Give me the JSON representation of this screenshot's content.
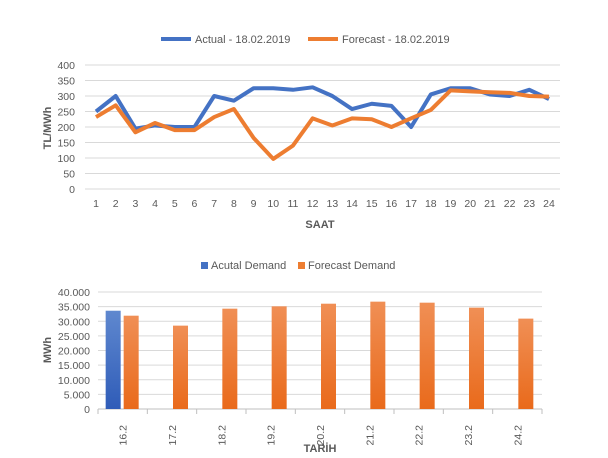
{
  "chart_data": [
    {
      "type": "line",
      "title": "",
      "xlabel": "SAAT",
      "ylabel": "TL/MWh",
      "ylim": [
        0,
        400
      ],
      "yticks": [
        "0",
        "50",
        "100",
        "150",
        "200",
        "250",
        "300",
        "350",
        "400"
      ],
      "grid": true,
      "legend_position": "top",
      "categories": [
        "1",
        "2",
        "3",
        "4",
        "5",
        "6",
        "7",
        "8",
        "9",
        "10",
        "11",
        "12",
        "13",
        "14",
        "15",
        "16",
        "17",
        "18",
        "19",
        "20",
        "21",
        "22",
        "23",
        "24"
      ],
      "series": [
        {
          "name": "Actual - 18.02.2019",
          "color": "#4472C4",
          "values": [
            250,
            300,
            195,
            205,
            200,
            200,
            300,
            285,
            325,
            325,
            320,
            328,
            300,
            258,
            275,
            268,
            200,
            305,
            325,
            325,
            305,
            300,
            320,
            290
          ]
        },
        {
          "name": "Forecast - 18.02.2019",
          "color": "#ED7D31",
          "values": [
            232,
            270,
            183,
            213,
            190,
            190,
            232,
            258,
            165,
            97,
            140,
            228,
            205,
            228,
            225,
            200,
            228,
            255,
            318,
            315,
            312,
            310,
            300,
            298
          ]
        }
      ]
    },
    {
      "type": "bar",
      "title": "",
      "xlabel": "TARİH",
      "ylabel": "MWh",
      "ylim": [
        0,
        40000
      ],
      "yticks": [
        "0",
        "5.000",
        "10.000",
        "15.000",
        "20.000",
        "25.000",
        "30.000",
        "35.000",
        "40.000"
      ],
      "grid": true,
      "legend_position": "top",
      "categories": [
        "16.2",
        "17.2",
        "18.2",
        "19.2",
        "20.2",
        "21.2",
        "22.2",
        "23.2",
        "24.2"
      ],
      "series": [
        {
          "name": "Acutal Demand",
          "color": "#4472C4",
          "values": [
            33600,
            null,
            null,
            null,
            null,
            null,
            null,
            null,
            null
          ]
        },
        {
          "name": "Forecast Demand",
          "color": "#ED7D31",
          "values": [
            31900,
            28500,
            34300,
            35100,
            36000,
            36700,
            36350,
            34650,
            30900
          ]
        }
      ]
    }
  ]
}
